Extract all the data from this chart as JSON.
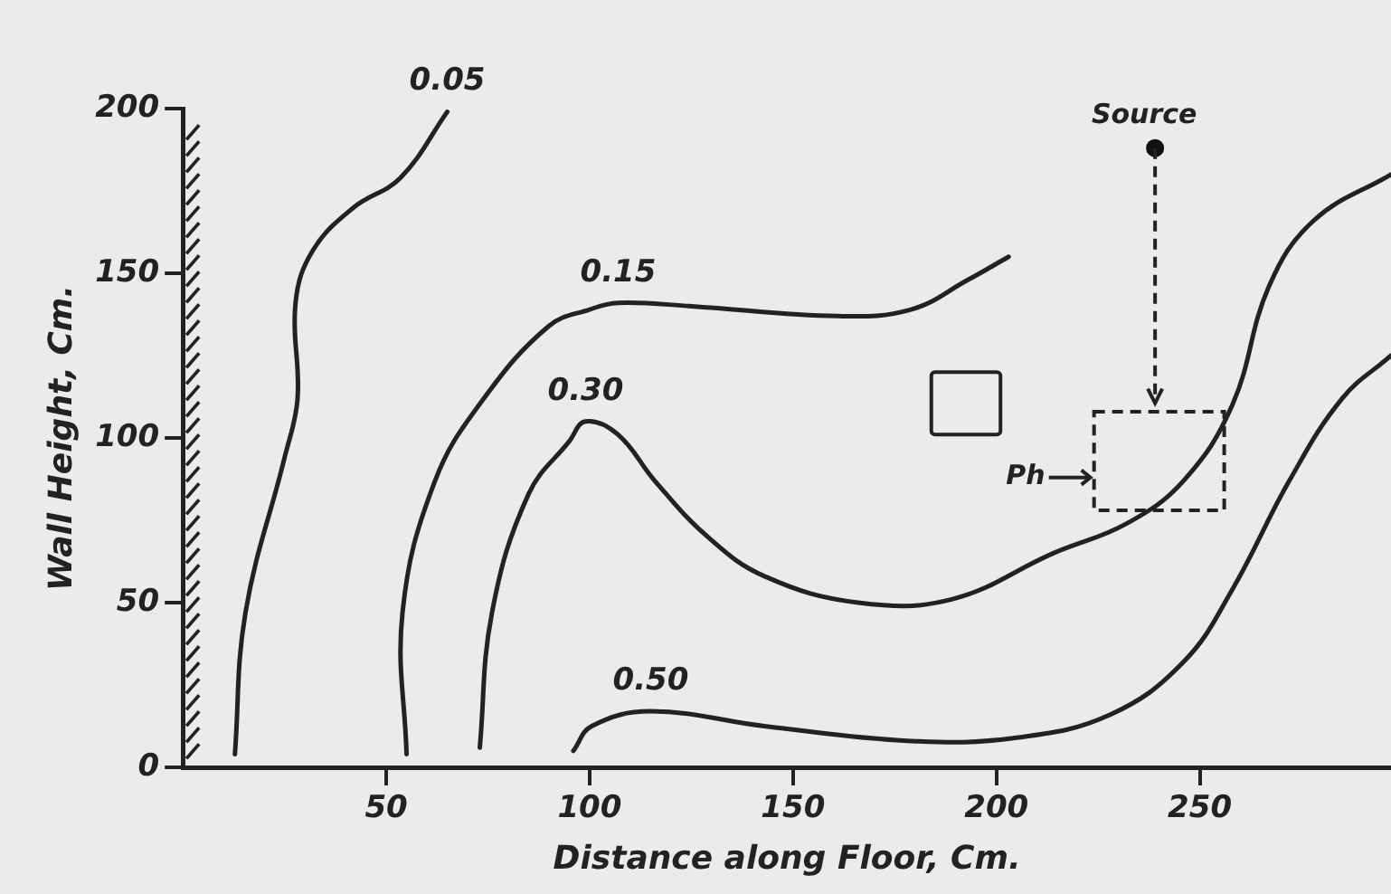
{
  "chart_data": {
    "type": "line",
    "xlabel": "Distance along Floor, Cm.",
    "ylabel": "Wall Height, Cm.",
    "xlim": [
      0,
      297
    ],
    "ylim": [
      0,
      200
    ],
    "xticks": [
      50,
      100,
      150,
      200,
      250
    ],
    "yticks": [
      0,
      50,
      100,
      150,
      200
    ],
    "grid": false,
    "legend": false,
    "marker": "none",
    "line_style": "solid",
    "series": [
      {
        "name": "0.05",
        "color": "#222222",
        "x": [
          12.8,
          15.4,
          25,
          28.2,
          27.7,
          32,
          42,
          53.5,
          65
        ],
        "values": [
          4,
          47,
          94,
          112,
          141,
          157,
          170,
          179,
          199
        ]
      },
      {
        "name": "0.15",
        "color": "#222222",
        "x": [
          55,
          54,
          62,
          74,
          90,
          100,
          107,
          125,
          161,
          179,
          193,
          203
        ],
        "values": [
          4,
          47,
          87,
          112,
          134,
          139,
          141,
          140,
          137,
          139,
          148,
          155
        ]
      },
      {
        "name": "0.30",
        "color": "#222222",
        "x": [
          73,
          76,
          85,
          95,
          99,
          107,
          116,
          129,
          143,
          166,
          189,
          214,
          232,
          246,
          258,
          267,
          278,
          297
        ],
        "values": [
          6,
          47,
          83,
          99,
          105,
          101,
          87,
          70,
          58,
          50,
          51,
          65,
          74,
          87,
          110,
          146,
          166,
          180
        ]
      },
      {
        "name": "0.50",
        "color": "#222222",
        "x": [
          96,
          100.5,
          115,
          143,
          179,
          205,
          228,
          246,
          258,
          272,
          285,
          297
        ],
        "values": [
          5,
          12.5,
          17,
          12.5,
          8,
          9,
          16,
          32,
          54,
          87,
          112,
          125
        ]
      }
    ],
    "annotations": [
      "Source",
      "Ph"
    ]
  }
}
